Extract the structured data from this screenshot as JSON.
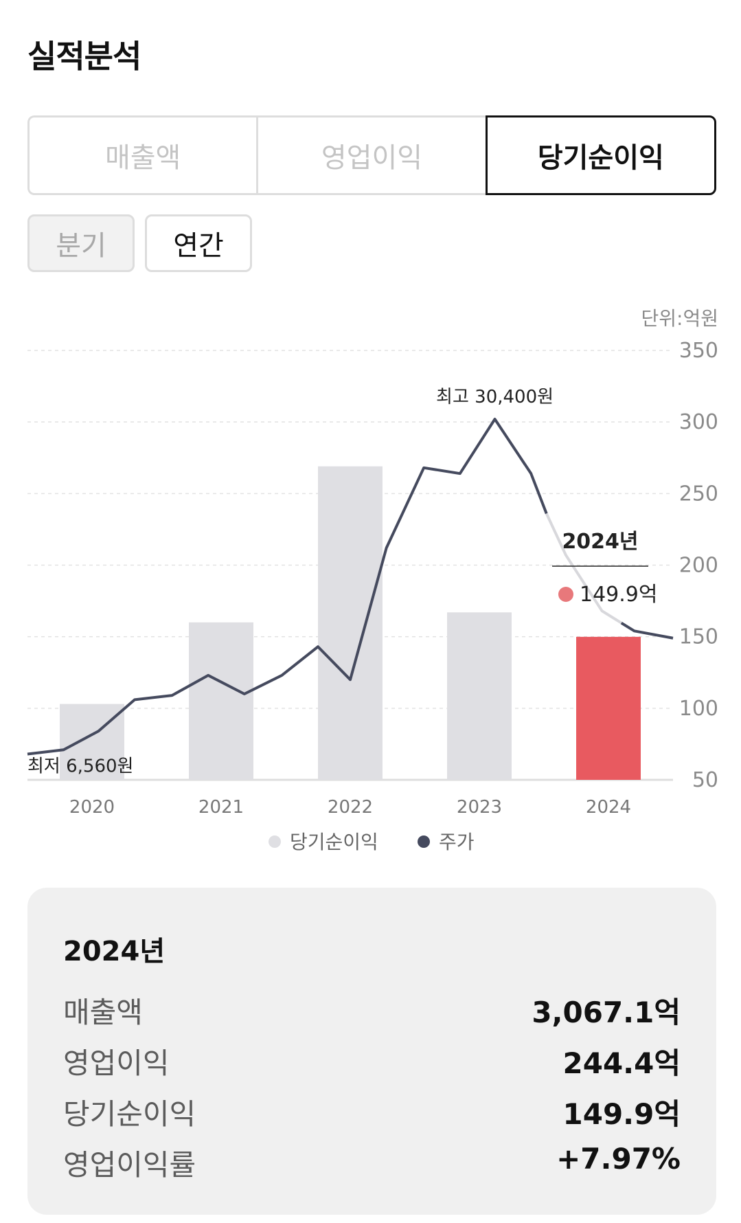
{
  "page": {
    "title": "실적분석"
  },
  "tabs": [
    {
      "label": "매출액",
      "active": false
    },
    {
      "label": "영업이익",
      "active": false
    },
    {
      "label": "당기순이익",
      "active": true
    }
  ],
  "period": {
    "quarter_label": "분기",
    "annual_label": "연간",
    "selected": "연간"
  },
  "colors": {
    "bar": "#dfdfe3",
    "highlight_bar": "#e85a60",
    "price_line": "#454a5e",
    "price_line_faded": "#d8d8dc",
    "tooltip_dot": "#e8787b"
  },
  "chart_data": {
    "type": "bar",
    "unit_label": "단위:억원",
    "categories": [
      "2020",
      "2021",
      "2022",
      "2023",
      "2024"
    ],
    "series": [
      {
        "name": "당기순이익",
        "values": [
          103,
          160,
          269,
          167,
          149.9
        ]
      },
      {
        "name": "주가",
        "type": "line",
        "points": [
          [
            -0.5,
            68
          ],
          [
            -0.22,
            71
          ],
          [
            0.05,
            84
          ],
          [
            0.33,
            106
          ],
          [
            0.62,
            109
          ],
          [
            0.9,
            123
          ],
          [
            1.18,
            110
          ],
          [
            1.47,
            123
          ],
          [
            1.75,
            143
          ],
          [
            2.0,
            120
          ],
          [
            2.28,
            212
          ],
          [
            2.57,
            268
          ],
          [
            2.85,
            264
          ],
          [
            3.12,
            302
          ],
          [
            3.4,
            264
          ],
          [
            3.52,
            236
          ],
          [
            3.67,
            207
          ],
          [
            3.95,
            168
          ],
          [
            4.2,
            154
          ],
          [
            4.5,
            149
          ]
        ],
        "faded_range": [
          3.52,
          4.1
        ]
      }
    ],
    "y_axis": {
      "ticks": [
        50,
        100,
        150,
        200,
        250,
        300,
        350
      ],
      "ylim": [
        50,
        350
      ]
    },
    "grid": true,
    "legend": {
      "placement": "bottom",
      "items": [
        "당기순이익",
        "주가"
      ]
    },
    "annotations": {
      "max_label": "최고 30,400원",
      "min_label": "최저 6,560원"
    },
    "tooltip": {
      "title": "2024년",
      "value": "149.9억"
    }
  },
  "summary": {
    "year": "2024년",
    "rows": [
      {
        "label": "매출액",
        "value": "3,067.1억"
      },
      {
        "label": "영업이익",
        "value": "244.4억"
      },
      {
        "label": "당기순이익",
        "value": "149.9억"
      },
      {
        "label": "영업이익률",
        "value": "+7.97%"
      }
    ]
  }
}
